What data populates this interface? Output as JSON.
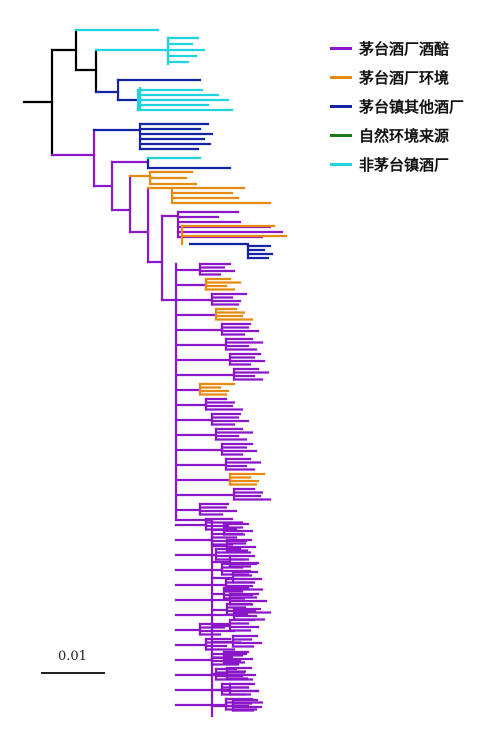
{
  "legend": [
    {
      "label": "茅台酒厂酒醅",
      "color": "#8B17C9"
    },
    {
      "label": "茅台酒厂环境",
      "color": "#E58A12"
    },
    {
      "label": "茅台镇其他酒厂",
      "color": "#1424A6"
    },
    {
      "label": "自然环境来源",
      "color": "#1F7A1F"
    },
    {
      "label": "非茅台镇酒厂",
      "color": "#1FD3E0"
    }
  ],
  "scale": {
    "label": "0.01"
  },
  "tree_colors": {
    "root": "#000000",
    "purple": "#8B17C9",
    "orange": "#E58A12",
    "blue": "#1424A6",
    "cyan": "#1FD3E0"
  }
}
